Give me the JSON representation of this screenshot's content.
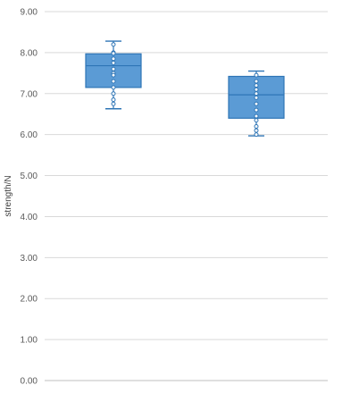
{
  "chart_data": {
    "type": "box",
    "ylabel": "strength/N",
    "ylim": [
      0,
      9
    ],
    "yticks": [
      "0.00",
      "1.00",
      "2.00",
      "3.00",
      "4.00",
      "5.00",
      "6.00",
      "7.00",
      "8.00",
      "9.00"
    ],
    "grid": true,
    "legend": "none",
    "colors": {
      "box_fill": "#5b9bd5",
      "box_stroke": "#2e75b6",
      "grid": "#d9d9d9",
      "axis": "#bfbfbf"
    },
    "series": [
      {
        "min": 6.63,
        "q1": 7.15,
        "median": 7.68,
        "q3": 7.97,
        "max": 8.28,
        "points": [
          8.2,
          8.0,
          7.98,
          7.85,
          7.75,
          7.6,
          7.5,
          7.45,
          7.3,
          7.15,
          7.0,
          6.85,
          6.75
        ]
      },
      {
        "min": 5.97,
        "q1": 6.4,
        "median": 6.97,
        "q3": 7.42,
        "max": 7.55,
        "points": [
          7.45,
          7.3,
          7.2,
          7.1,
          7.0,
          6.9,
          6.75,
          6.6,
          6.45,
          6.35,
          6.2,
          6.1,
          6.0
        ]
      }
    ]
  }
}
